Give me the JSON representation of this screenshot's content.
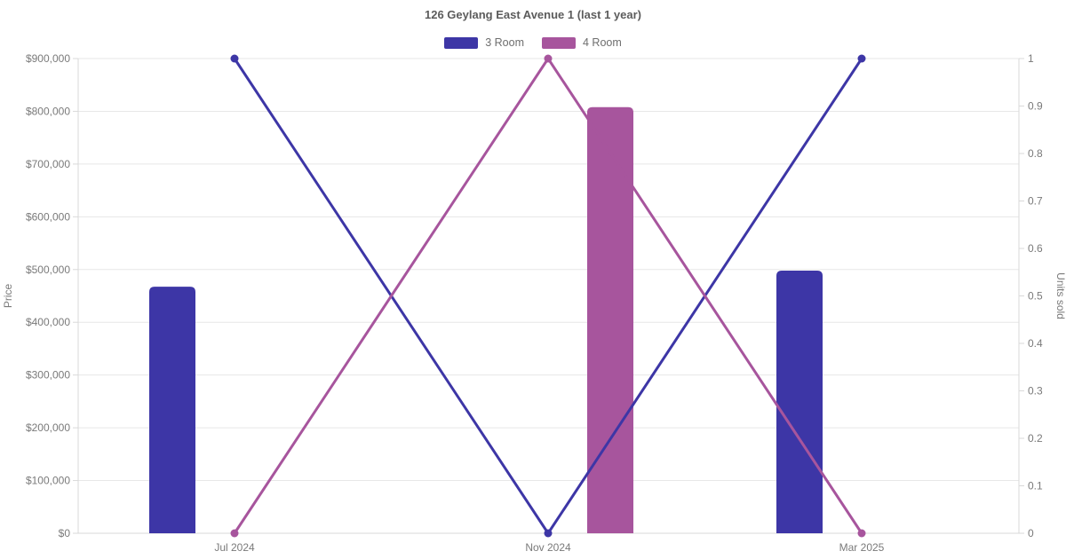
{
  "chart_data": {
    "type": "mixed-bar-line",
    "title": "126 Geylang East Avenue 1 (last 1 year)",
    "legend": {
      "position": "top",
      "items": [
        "3 Room",
        "4 Room"
      ]
    },
    "x_axis": {
      "type": "time",
      "range": [
        "May 2024",
        "May 2025"
      ],
      "visible_ticks": [
        "Jul 2024",
        "Nov 2024",
        "Mar 2025"
      ]
    },
    "y_left": {
      "label": "Price",
      "min": 0,
      "max": 900000,
      "ticks": [
        "$0",
        "$100,000",
        "$200,000",
        "$300,000",
        "$400,000",
        "$500,000",
        "$600,000",
        "$700,000",
        "$800,000",
        "$900,000"
      ]
    },
    "y_right": {
      "label": "Units sold",
      "min": 0,
      "max": 1,
      "ticks": [
        "0",
        "0.1",
        "0.2",
        "0.3",
        "0.4",
        "0.5",
        "0.6",
        "0.7",
        "0.8",
        "0.9",
        "1"
      ]
    },
    "series": [
      {
        "name": "3 Room",
        "color": "#3d36a6",
        "price_bars": [
          {
            "month": "Jul 2024",
            "price": 467500
          },
          {
            "month": "Mar 2025",
            "price": 498000
          }
        ],
        "units_line": [
          {
            "month": "Jul 2024",
            "units": 1
          },
          {
            "month": "Nov 2024",
            "units": 0
          },
          {
            "month": "Mar 2025",
            "units": 1
          }
        ]
      },
      {
        "name": "4 Room",
        "color": "#a7559d",
        "price_bars": [
          {
            "month": "Nov 2024",
            "price": 808000
          }
        ],
        "units_line": [
          {
            "month": "Jul 2024",
            "units": 0
          },
          {
            "month": "Nov 2024",
            "units": 1
          },
          {
            "month": "Mar 2025",
            "units": 0
          }
        ]
      }
    ],
    "grid": {
      "horizontal": true,
      "vertical": false
    },
    "colors": {
      "background": "#ffffff",
      "grid_line": "#e7e7e7",
      "axis_line": "#d9d9d9",
      "tick_text": "#7a7a7a",
      "title_text": "#5c5c5c",
      "legend_text": "#6e6e6e"
    }
  }
}
